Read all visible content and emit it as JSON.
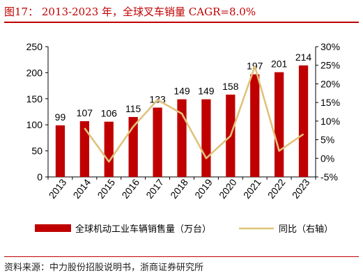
{
  "title": "图17： 2013-2023 年，全球叉车销量 CAGR=8.0%",
  "source": "资料来源：中力股份招股说明书，浙商证券研究所",
  "colors": {
    "bar": "#c00000",
    "line": "#e0c27a",
    "title": "#c00000"
  },
  "chart_data": {
    "type": "bar",
    "categories": [
      "2013",
      "2014",
      "2015",
      "2016",
      "2017",
      "2018",
      "2019",
      "2020",
      "2021",
      "2022",
      "2023"
    ],
    "series": [
      {
        "name": "全球机动工业车辆销售量（万台）",
        "type": "bar",
        "axis": "left",
        "values": [
          99,
          107,
          106,
          115,
          133,
          149,
          149,
          158,
          197,
          201,
          214
        ]
      },
      {
        "name": "同比（右轴）",
        "type": "line",
        "axis": "right",
        "values": [
          null,
          8.1,
          -0.9,
          8.5,
          15.7,
          12.0,
          0.0,
          6.0,
          24.7,
          2.0,
          6.5
        ]
      }
    ],
    "data_labels": [
      "99",
      "107",
      "106",
      "115",
      "133",
      "149",
      "149",
      "158",
      "197",
      "201",
      "214"
    ],
    "left_axis": {
      "ylim": [
        0,
        250
      ],
      "ticks": [
        "0",
        "50",
        "100",
        "150",
        "200",
        "250"
      ]
    },
    "right_axis": {
      "ylim": [
        -5,
        30
      ],
      "ticks": [
        "-5%",
        "0%",
        "5%",
        "10%",
        "15%",
        "20%",
        "25%",
        "30%"
      ]
    },
    "legend_position": "bottom",
    "grid": false
  }
}
